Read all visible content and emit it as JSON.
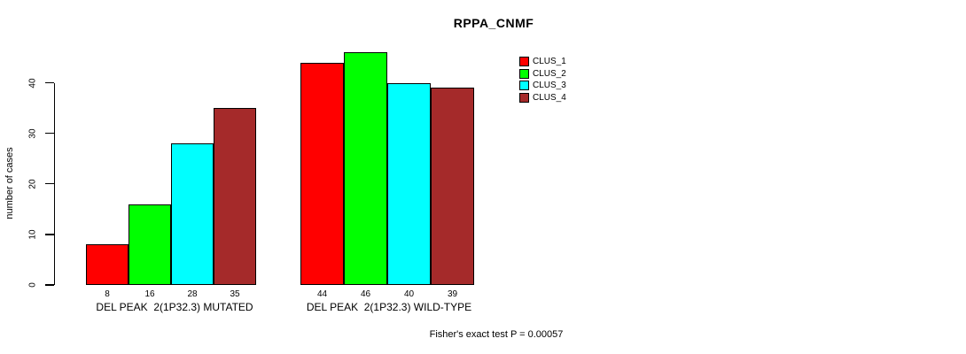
{
  "chart_data": {
    "type": "bar",
    "title": "RPPA_CNMF",
    "ylabel": "number of cases",
    "yticks": [
      0,
      10,
      20,
      30,
      40
    ],
    "ylim": [
      0,
      46
    ],
    "grid": false,
    "legend_position": "top-right",
    "legend": [
      {
        "name": "CLUS_1",
        "color": "#FF0000"
      },
      {
        "name": "CLUS_2",
        "color": "#00FF00"
      },
      {
        "name": "CLUS_3",
        "color": "#00FFFF"
      },
      {
        "name": "CLUS_4",
        "color": "#A52A2A"
      }
    ],
    "groups": [
      {
        "label": "DEL PEAK  2(1P32.3) MUTATED",
        "values": [
          8,
          16,
          28,
          35
        ]
      },
      {
        "label": "DEL PEAK  2(1P32.3) WILD-TYPE",
        "values": [
          44,
          46,
          40,
          39
        ]
      }
    ],
    "annotation": "Fisher's exact test P = 0.00057"
  }
}
